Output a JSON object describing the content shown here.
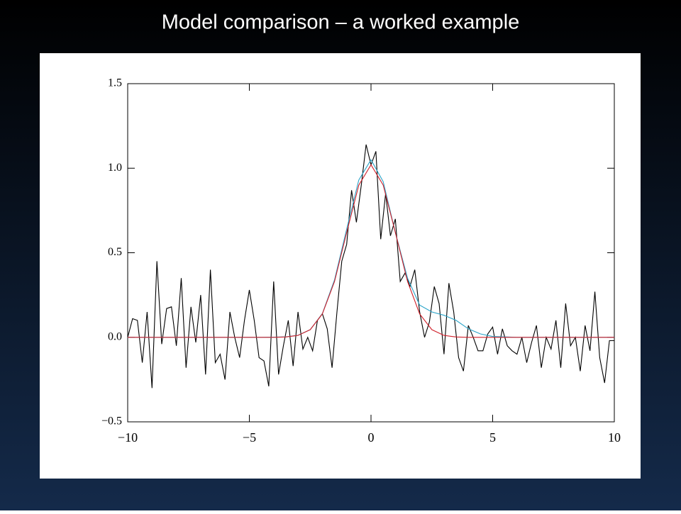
{
  "chart_data": {
    "type": "line",
    "title": "Model comparison – a worked example",
    "xlim": [
      -10,
      10
    ],
    "ylim": [
      -0.5,
      1.5
    ],
    "xticks": [
      {
        "value": -10,
        "label": "−10"
      },
      {
        "value": -5,
        "label": "−5"
      },
      0,
      5,
      10
    ],
    "yticks": [
      {
        "value": -0.5,
        "label": "−0.5"
      },
      {
        "value": 0,
        "label": "0.0"
      },
      {
        "value": 0.5,
        "label": "0.5"
      },
      {
        "value": 1,
        "label": "1.0"
      },
      {
        "value": 1.5,
        "label": "1.5"
      }
    ],
    "series": [
      {
        "color": "#000000",
        "x": [
          -10,
          -9.8,
          -9.6,
          -9.4,
          -9.2,
          -9,
          -8.8,
          -8.6,
          -8.4,
          -8.2,
          -8,
          -7.8,
          -7.6,
          -7.4,
          -7.2,
          -7,
          -6.8,
          -6.6,
          -6.4,
          -6.2,
          -6,
          -5.8,
          -5.6,
          -5.4,
          -5.2,
          -5,
          -4.8,
          -4.6,
          -4.4,
          -4.2,
          -4,
          -3.8,
          -3.6,
          -3.4,
          -3.2,
          -3,
          -2.8,
          -2.6,
          -2.4,
          -2.2,
          -2,
          -1.8,
          -1.6,
          -1.4,
          -1.2,
          -1,
          -0.8,
          -0.6,
          -0.4,
          -0.2,
          0,
          0.2,
          0.4,
          0.6,
          0.8,
          1,
          1.2,
          1.4,
          1.6,
          1.8,
          2,
          2.2,
          2.4,
          2.6,
          2.8,
          3,
          3.2,
          3.4,
          3.6,
          3.8,
          4,
          4.2,
          4.4,
          4.6,
          4.8,
          5,
          5.2,
          5.4,
          5.6,
          5.8,
          6,
          6.2,
          6.4,
          6.6,
          6.8,
          7,
          7.2,
          7.4,
          7.6,
          7.8,
          8,
          8.2,
          8.4,
          8.6,
          8.8,
          9,
          9.2,
          9.4,
          9.6,
          9.8,
          10
        ],
        "values": [
          0,
          0.11,
          0.1,
          -0.15,
          0.15,
          -0.3,
          0.45,
          -0.04,
          0.17,
          0.18,
          -0.05,
          0.35,
          -0.18,
          0.18,
          -0.03,
          0.25,
          -0.22,
          0.4,
          -0.15,
          -0.1,
          -0.25,
          0.15,
          0,
          -0.12,
          0.1,
          0.28,
          0.1,
          -0.12,
          -0.14,
          -0.29,
          0.33,
          -0.22,
          -0.05,
          0.1,
          -0.17,
          0.15,
          -0.07,
          0,
          -0.08,
          0.1,
          0.14,
          0.05,
          -0.18,
          0.15,
          0.45,
          0.55,
          0.87,
          0.68,
          0.9,
          1.14,
          1.02,
          1.1,
          0.58,
          0.85,
          0.6,
          0.7,
          0.33,
          0.38,
          0.3,
          0.4,
          0.15,
          0,
          0.09,
          0.3,
          0.2,
          -0.1,
          0.32,
          0.15,
          -0.12,
          -0.2,
          0.07,
          0,
          -0.08,
          -0.08,
          0.02,
          0.06,
          -0.1,
          0.05,
          -0.05,
          -0.08,
          -0.1,
          0,
          -0.15,
          -0.03,
          0.07,
          -0.18,
          0,
          -0.07,
          0.1,
          -0.18,
          0.2,
          -0.05,
          0,
          -0.2,
          0.07,
          -0.08,
          0.27,
          -0.12,
          -0.27,
          -0.02,
          -0.02
        ]
      },
      {
        "color": "#2aa3c8",
        "x": [
          -10,
          -9,
          -8,
          -7,
          -6,
          -5,
          -4.5,
          -4,
          -3.5,
          -3,
          -2.5,
          -2,
          -1.5,
          -1,
          -0.5,
          0,
          0.5,
          1,
          1.5,
          2,
          2.5,
          3,
          3.5,
          4,
          4.5,
          5,
          6,
          7,
          8,
          9,
          10
        ],
        "values": [
          0,
          0,
          0,
          0,
          0,
          0,
          0,
          0.001,
          0.003,
          0.012,
          0.045,
          0.14,
          0.34,
          0.64,
          0.93,
          1.05,
          0.92,
          0.62,
          0.35,
          0.19,
          0.15,
          0.13,
          0.1,
          0.05,
          0.02,
          0.005,
          0,
          0,
          0,
          0,
          0
        ]
      },
      {
        "color": "#d0202a",
        "x": [
          -10,
          -9,
          -8,
          -7,
          -6,
          -5,
          -4.5,
          -4,
          -3.5,
          -3,
          -2.5,
          -2,
          -1.5,
          -1,
          -0.5,
          0,
          0.5,
          1,
          1.5,
          2,
          2.5,
          3,
          3.5,
          4,
          4.5,
          5,
          6,
          7,
          8,
          9,
          10
        ],
        "values": [
          0,
          0,
          0,
          0,
          0,
          0,
          0,
          0,
          0.002,
          0.011,
          0.045,
          0.138,
          0.33,
          0.62,
          0.9,
          1.02,
          0.9,
          0.62,
          0.33,
          0.138,
          0.045,
          0.011,
          0.002,
          0,
          0,
          0,
          0,
          0,
          0,
          0,
          0
        ]
      }
    ]
  }
}
